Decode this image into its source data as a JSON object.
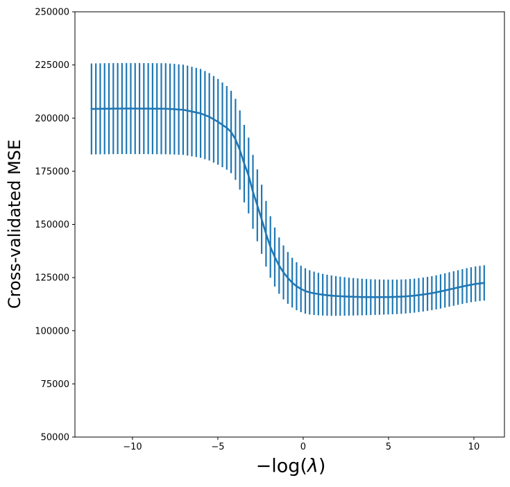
{
  "figure": {
    "background": "#ffffff",
    "text_color": "#000000"
  },
  "chart_data": {
    "type": "line",
    "subtype": "errorbar",
    "title": "",
    "xlabel": "−log(λ)",
    "ylabel": "Cross-validated MSE",
    "xlim": [
      -13.37,
      11.79
    ],
    "ylim": [
      50000,
      250000
    ],
    "grid": false,
    "legend": "none",
    "line_color": "#1f77b4",
    "errorbar_color": "#1f77b4",
    "x_ticks": [
      -10,
      -5,
      0,
      5,
      10
    ],
    "x_tick_labels": [
      "−10",
      "−5",
      "0",
      "5",
      "10"
    ],
    "y_ticks": [
      50000,
      75000,
      100000,
      125000,
      150000,
      175000,
      200000,
      225000,
      250000
    ],
    "y_tick_labels": [
      "50000",
      "75000",
      "100000",
      "125000",
      "150000",
      "175000",
      "200000",
      "225000",
      "250000"
    ],
    "series": [
      {
        "name": "cross-validated-mse",
        "x": [
          -12.4,
          -12.144,
          -11.889,
          -11.633,
          -11.378,
          -11.122,
          -10.866,
          -10.611,
          -10.355,
          -10.1,
          -9.844,
          -9.588,
          -9.333,
          -9.077,
          -8.822,
          -8.566,
          -8.31,
          -8.055,
          -7.799,
          -7.544,
          -7.288,
          -7.032,
          -6.777,
          -6.521,
          -6.266,
          -6.01,
          -5.754,
          -5.499,
          -5.243,
          -4.988,
          -4.732,
          -4.476,
          -4.221,
          -3.965,
          -3.71,
          -3.454,
          -3.198,
          -2.943,
          -2.687,
          -2.432,
          -2.176,
          -1.92,
          -1.665,
          -1.409,
          -1.154,
          -0.898,
          -0.642,
          -0.387,
          -0.131,
          0.124,
          0.38,
          0.636,
          0.891,
          1.147,
          1.402,
          1.658,
          1.914,
          2.169,
          2.425,
          2.68,
          2.936,
          3.192,
          3.447,
          3.703,
          3.958,
          4.214,
          4.47,
          4.725,
          4.981,
          5.236,
          5.492,
          5.748,
          6.003,
          6.259,
          6.514,
          6.77,
          7.026,
          7.281,
          7.537,
          7.792,
          8.048,
          8.304,
          8.559,
          8.815,
          9.07,
          9.326,
          9.582,
          9.837,
          10.093,
          10.348,
          10.604
        ],
        "y": [
          204300,
          204340,
          204380,
          204410,
          204440,
          204460,
          204480,
          204490,
          204500,
          204500,
          204490,
          204480,
          204470,
          204450,
          204440,
          204420,
          204410,
          204400,
          204300,
          204170,
          204040,
          203920,
          203530,
          203080,
          202660,
          202220,
          201420,
          200600,
          199430,
          198240,
          196850,
          195420,
          193480,
          190000,
          185000,
          178600,
          173000,
          165330,
          158970,
          152420,
          145620,
          139390,
          134670,
          130630,
          127440,
          124850,
          122610,
          120940,
          119660,
          118680,
          118040,
          117610,
          117250,
          116950,
          116700,
          116510,
          116350,
          116230,
          116130,
          116050,
          115970,
          115910,
          115860,
          115830,
          115800,
          115800,
          115800,
          115820,
          115850,
          115900,
          115950,
          116050,
          116150,
          116330,
          116510,
          116770,
          117030,
          117340,
          117660,
          118070,
          118490,
          118950,
          119410,
          119870,
          120330,
          120790,
          121230,
          121640,
          121990,
          122250,
          122500
        ],
        "yerr": [
          21400,
          21400,
          21400,
          21400,
          21400,
          21400,
          21400,
          21400,
          21400,
          21400,
          21400,
          21400,
          21400,
          21400,
          21400,
          21400,
          21400,
          21400,
          21360,
          21310,
          21260,
          21210,
          21130,
          21060,
          20990,
          20900,
          20730,
          20550,
          20370,
          20190,
          19930,
          19680,
          19360,
          19050,
          18640,
          18220,
          17810,
          17380,
          16870,
          16240,
          15420,
          14470,
          13850,
          13260,
          12700,
          12180,
          11690,
          11280,
          10940,
          10680,
          10420,
          10190,
          9990,
          9810,
          9660,
          9500,
          9350,
          9200,
          9070,
          8930,
          8820,
          8720,
          8620,
          8520,
          8420,
          8360,
          8310,
          8250,
          8200,
          8150,
          8110,
          8080,
          8050,
          8030,
          8000,
          8000,
          8000,
          8000,
          8000,
          8020,
          8050,
          8070,
          8100,
          8120,
          8150,
          8170,
          8200,
          8220,
          8250,
          8270,
          8300
        ]
      }
    ]
  }
}
